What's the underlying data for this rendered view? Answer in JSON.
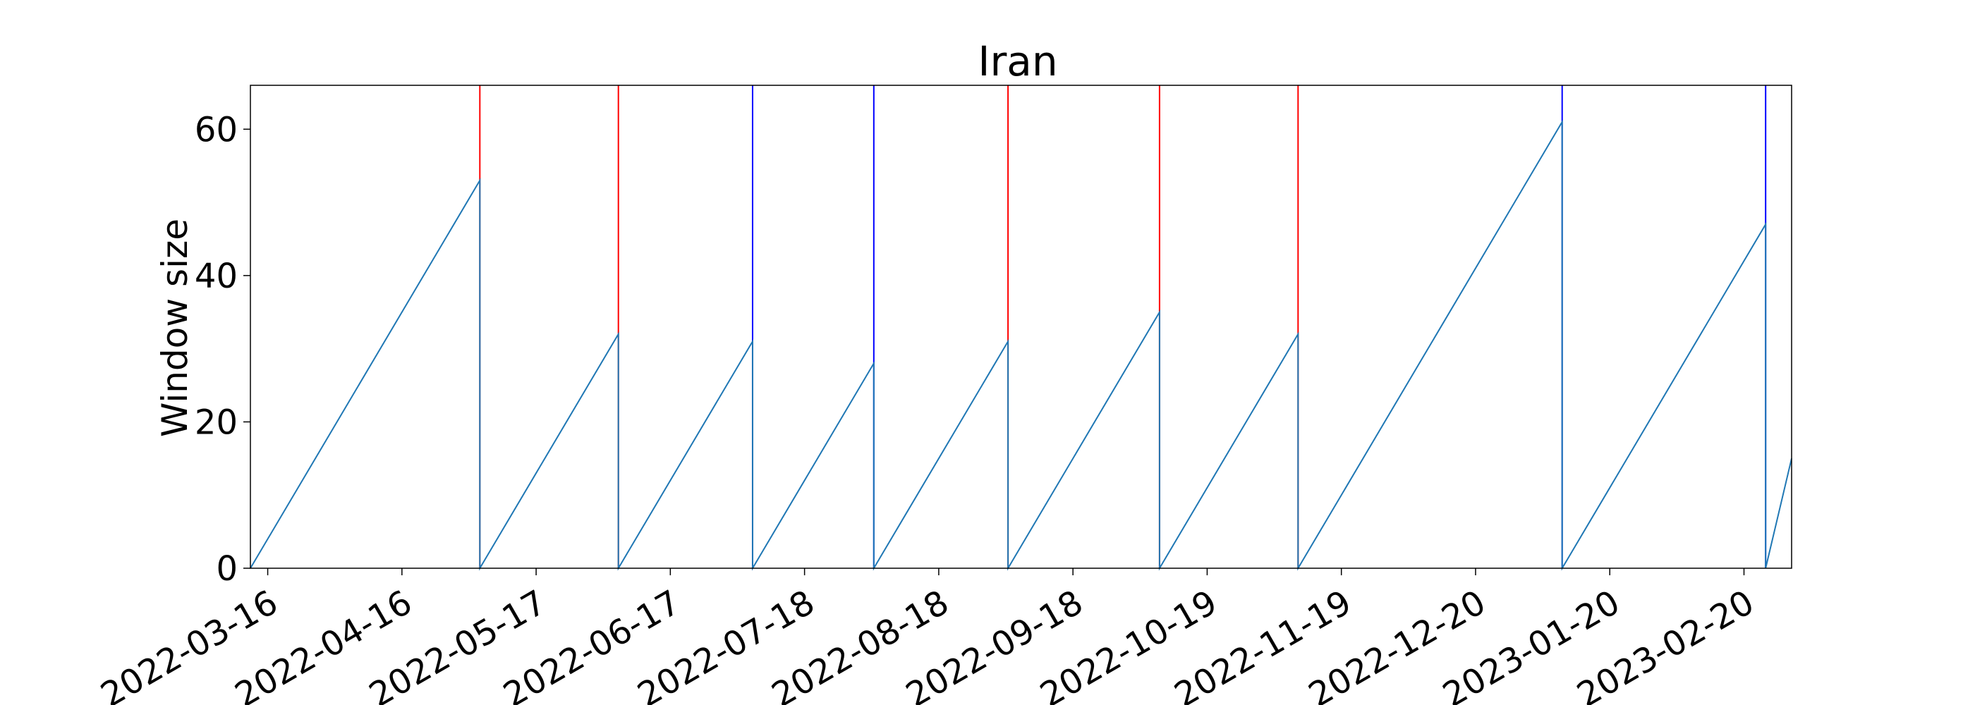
{
  "chart_data": {
    "type": "line",
    "title": "Iran",
    "xlabel": "",
    "ylabel": "Window size",
    "xlim": [
      "2022-03-12",
      "2023-03-03"
    ],
    "ylim": [
      0,
      66
    ],
    "yticks": [
      0,
      20,
      40,
      60
    ],
    "xticks": [
      "2022-03-16",
      "2022-04-16",
      "2022-05-17",
      "2022-06-17",
      "2022-07-18",
      "2022-08-18",
      "2022-09-18",
      "2022-10-19",
      "2022-11-19",
      "2022-12-20",
      "2023-01-20",
      "2023-02-20"
    ],
    "grid": false,
    "series": [
      {
        "type": "sawtooth",
        "color": "#1f77b4",
        "points": [
          [
            "2022-03-12",
            0
          ],
          [
            "2022-05-04",
            53
          ],
          [
            "2022-05-04",
            0
          ],
          [
            "2022-06-05",
            32
          ],
          [
            "2022-06-05",
            0
          ],
          [
            "2022-07-06",
            31
          ],
          [
            "2022-07-06",
            0
          ],
          [
            "2022-08-03",
            28
          ],
          [
            "2022-08-03",
            0
          ],
          [
            "2022-09-03",
            31
          ],
          [
            "2022-09-03",
            0
          ],
          [
            "2022-10-08",
            35
          ],
          [
            "2022-10-08",
            0
          ],
          [
            "2022-11-09",
            32
          ],
          [
            "2022-11-09",
            0
          ],
          [
            "2023-01-09",
            61
          ],
          [
            "2023-01-09",
            0
          ],
          [
            "2023-02-25",
            47
          ],
          [
            "2023-02-25",
            0
          ],
          [
            "2023-03-03",
            15
          ]
        ]
      }
    ],
    "vertical_lines": [
      {
        "date": "2022-05-04",
        "color": "red"
      },
      {
        "date": "2022-06-05",
        "color": "red"
      },
      {
        "date": "2022-07-06",
        "color": "blue"
      },
      {
        "date": "2022-08-03",
        "color": "blue"
      },
      {
        "date": "2022-09-03",
        "color": "red"
      },
      {
        "date": "2022-10-08",
        "color": "red"
      },
      {
        "date": "2022-11-09",
        "color": "red"
      },
      {
        "date": "2023-01-09",
        "color": "blue"
      },
      {
        "date": "2023-02-25",
        "color": "blue"
      }
    ]
  }
}
